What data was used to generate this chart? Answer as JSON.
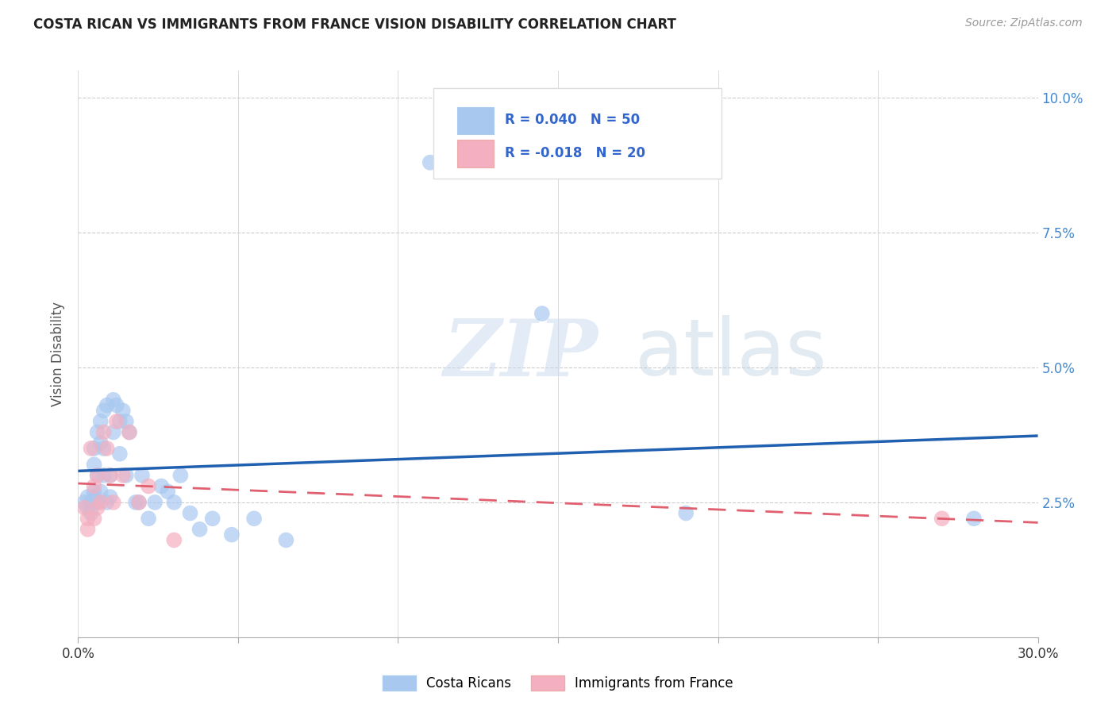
{
  "title": "COSTA RICAN VS IMMIGRANTS FROM FRANCE VISION DISABILITY CORRELATION CHART",
  "source": "Source: ZipAtlas.com",
  "ylabel": "Vision Disability",
  "yticks": [
    0.0,
    0.025,
    0.05,
    0.075,
    0.1
  ],
  "ytick_labels": [
    "",
    "2.5%",
    "5.0%",
    "7.5%",
    "10.0%"
  ],
  "xlim": [
    0.0,
    0.3
  ],
  "ylim": [
    0.0,
    0.105
  ],
  "blue_R": 0.04,
  "blue_N": 50,
  "pink_R": -0.018,
  "pink_N": 20,
  "blue_color": "#a8c8f0",
  "pink_color": "#f4afc0",
  "blue_line_color": "#2060b0",
  "pink_line_color": "#e06070",
  "legend1_label": "Costa Ricans",
  "legend2_label": "Immigrants from France",
  "watermark_zip": "ZIP",
  "watermark_atlas": "atlas",
  "blue_x": [
    0.002,
    0.003,
    0.003,
    0.004,
    0.004,
    0.005,
    0.005,
    0.005,
    0.005,
    0.006,
    0.006,
    0.006,
    0.007,
    0.007,
    0.007,
    0.008,
    0.008,
    0.008,
    0.009,
    0.009,
    0.01,
    0.01,
    0.011,
    0.011,
    0.012,
    0.013,
    0.013,
    0.014,
    0.015,
    0.015,
    0.016,
    0.018,
    0.019,
    0.02,
    0.022,
    0.024,
    0.026,
    0.028,
    0.03,
    0.032,
    0.035,
    0.038,
    0.042,
    0.048,
    0.055,
    0.065,
    0.11,
    0.145,
    0.19,
    0.28
  ],
  "blue_y": [
    0.025,
    0.024,
    0.026,
    0.025,
    0.023,
    0.026,
    0.027,
    0.032,
    0.035,
    0.025,
    0.03,
    0.038,
    0.027,
    0.036,
    0.04,
    0.03,
    0.035,
    0.042,
    0.025,
    0.043,
    0.026,
    0.03,
    0.038,
    0.044,
    0.043,
    0.034,
    0.04,
    0.042,
    0.03,
    0.04,
    0.038,
    0.025,
    0.025,
    0.03,
    0.022,
    0.025,
    0.028,
    0.027,
    0.025,
    0.03,
    0.023,
    0.02,
    0.022,
    0.019,
    0.022,
    0.018,
    0.088,
    0.06,
    0.023,
    0.022
  ],
  "pink_x": [
    0.002,
    0.003,
    0.003,
    0.004,
    0.005,
    0.005,
    0.006,
    0.006,
    0.007,
    0.008,
    0.009,
    0.01,
    0.011,
    0.012,
    0.014,
    0.016,
    0.019,
    0.022,
    0.03,
    0.27
  ],
  "pink_y": [
    0.024,
    0.022,
    0.02,
    0.035,
    0.022,
    0.028,
    0.024,
    0.03,
    0.025,
    0.038,
    0.035,
    0.03,
    0.025,
    0.04,
    0.03,
    0.038,
    0.025,
    0.028,
    0.018,
    0.022
  ]
}
